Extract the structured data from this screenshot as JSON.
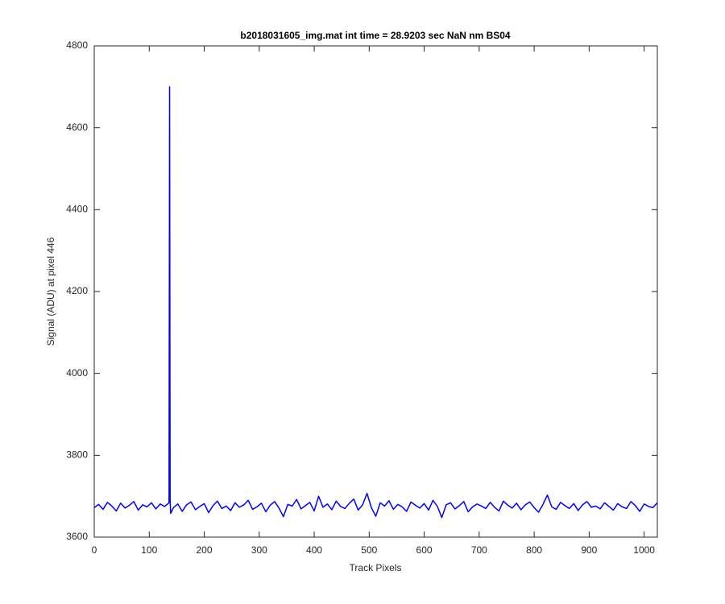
{
  "chart_data": {
    "type": "line",
    "title": "b2018031605_img.mat int time = 28.9203 sec  NaN nm BS04",
    "x_label": "Track Pixels",
    "y_label": "Signal (ADU) at pixel 446",
    "xlim": [
      0,
      1024
    ],
    "ylim": [
      3600,
      4800
    ],
    "xticks": [
      0,
      100,
      200,
      300,
      400,
      500,
      600,
      700,
      800,
      900,
      1000
    ],
    "yticks": [
      3600,
      3800,
      4000,
      4200,
      4400,
      4600,
      4800
    ],
    "grid": false,
    "series": [
      {
        "color": "#0000ff",
        "x": [
          0,
          8,
          16,
          24,
          32,
          40,
          48,
          56,
          64,
          72,
          80,
          88,
          96,
          104,
          112,
          120,
          128,
          136,
          137,
          138,
          139,
          144,
          152,
          160,
          168,
          176,
          184,
          192,
          200,
          208,
          216,
          224,
          232,
          240,
          248,
          256,
          264,
          272,
          280,
          288,
          296,
          304,
          312,
          320,
          328,
          336,
          344,
          352,
          360,
          368,
          376,
          384,
          392,
          400,
          408,
          416,
          424,
          432,
          440,
          448,
          456,
          464,
          472,
          480,
          488,
          496,
          504,
          512,
          520,
          528,
          536,
          544,
          552,
          560,
          568,
          576,
          584,
          592,
          600,
          608,
          616,
          624,
          632,
          640,
          648,
          656,
          664,
          672,
          680,
          688,
          696,
          704,
          712,
          720,
          728,
          736,
          744,
          752,
          760,
          768,
          776,
          784,
          792,
          800,
          808,
          816,
          824,
          832,
          840,
          848,
          856,
          864,
          872,
          880,
          888,
          896,
          904,
          912,
          920,
          928,
          936,
          944,
          952,
          960,
          968,
          976,
          984,
          992,
          1000,
          1008,
          1016,
          1024
        ],
        "values": [
          3672,
          3680,
          3668,
          3685,
          3676,
          3664,
          3683,
          3671,
          3678,
          3687,
          3666,
          3679,
          3674,
          3684,
          3669,
          3681,
          3675,
          3684,
          4700,
          3690,
          3658,
          3672,
          3681,
          3663,
          3679,
          3686,
          3667,
          3675,
          3682,
          3660,
          3677,
          3688,
          3670,
          3676,
          3665,
          3684,
          3673,
          3679,
          3690,
          3668,
          3674,
          3683,
          3662,
          3678,
          3687,
          3671,
          3650,
          3680,
          3676,
          3692,
          3669,
          3677,
          3685,
          3664,
          3700,
          3673,
          3681,
          3667,
          3688,
          3675,
          3670,
          3683,
          3693,
          3666,
          3679,
          3707,
          3672,
          3651,
          3684,
          3676,
          3689,
          3668,
          3680,
          3674,
          3663,
          3686,
          3678,
          3671,
          3682,
          3666,
          3690,
          3675,
          3648,
          3679,
          3684,
          3669,
          3677,
          3687,
          3662,
          3674,
          3681,
          3676,
          3670,
          3685,
          3673,
          3664,
          3688,
          3678,
          3671,
          3683,
          3667,
          3679,
          3686,
          3672,
          3661,
          3680,
          3703,
          3674,
          3668,
          3685,
          3677,
          3670,
          3682,
          3665,
          3679,
          3687,
          3673,
          3676,
          3669,
          3684,
          3675,
          3666,
          3682,
          3674,
          3670,
          3687,
          3677,
          3663,
          3681,
          3675,
          3672,
          3684
        ]
      }
    ]
  }
}
